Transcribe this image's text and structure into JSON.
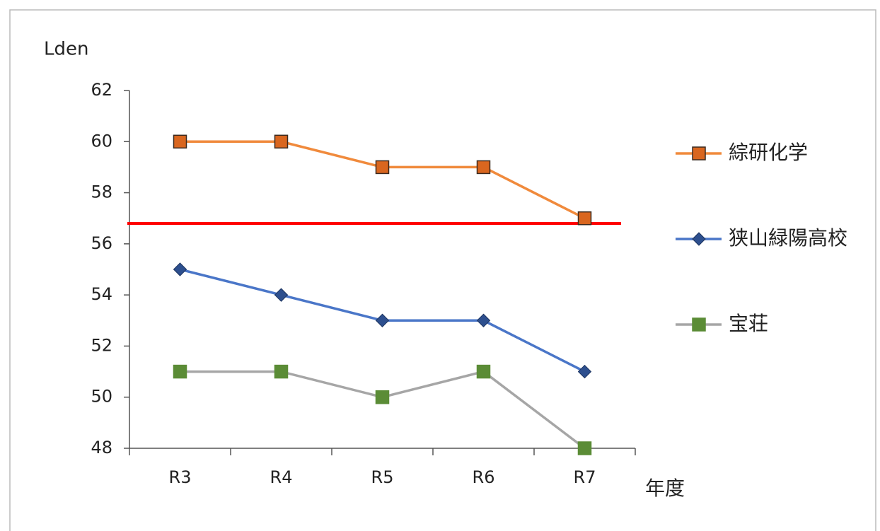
{
  "chart_data": {
    "type": "line",
    "y_label": "Lden",
    "x_label": "年度",
    "categories": [
      "R3",
      "R4",
      "R5",
      "R6",
      "R7"
    ],
    "series": [
      {
        "name": "綜研化学",
        "color": "#f08a3c",
        "marker": "square",
        "marker_color": "#d9661f",
        "values": [
          60,
          60,
          59,
          59,
          57
        ]
      },
      {
        "name": "狭山緑陽高校",
        "color": "#4a76c8",
        "marker": "diamond",
        "marker_color": "#2d4f8e",
        "values": [
          55,
          54,
          53,
          53,
          51
        ]
      },
      {
        "name": "宝荘",
        "color": "#a6a6a6",
        "marker": "square",
        "marker_color": "#5b8c36",
        "values": [
          51,
          51,
          50,
          51,
          48
        ]
      }
    ],
    "ylim": [
      48,
      62
    ],
    "yticks": [
      48,
      50,
      52,
      54,
      56,
      58,
      60,
      62
    ],
    "hlines": [
      {
        "value": 56.8,
        "color": "#ff0000"
      }
    ],
    "legend": "right"
  }
}
